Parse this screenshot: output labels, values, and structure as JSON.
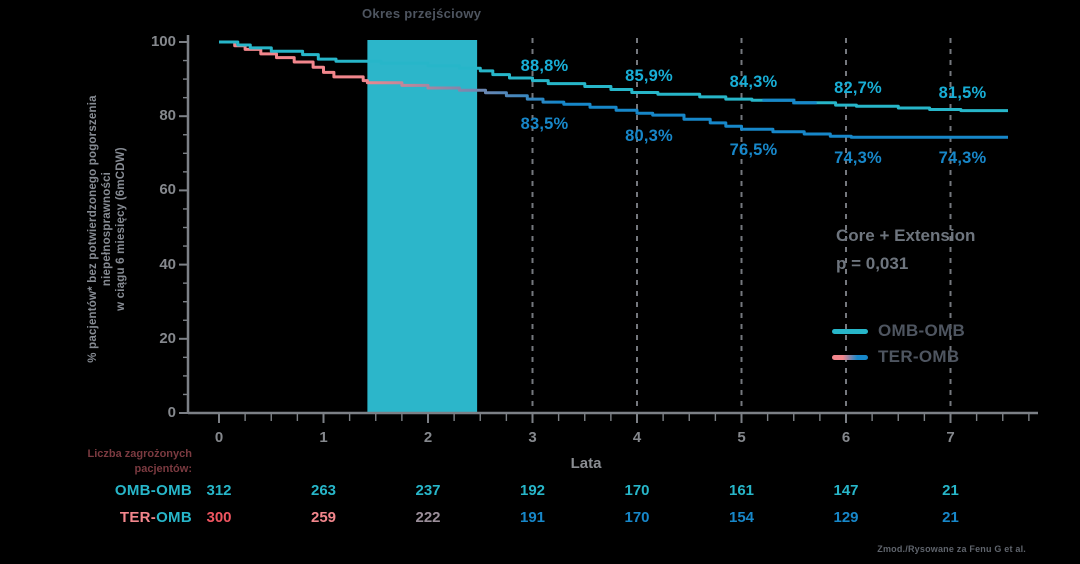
{
  "band": {
    "title": "Okres przejściowy"
  },
  "y_axis": {
    "label_lines": [
      "% pacjentów* bez potwierdzonego pogorszenia",
      "niepełnosprawności",
      "w ciągu 6 miesięcy (6mCDW)"
    ],
    "ticks": [
      0,
      20,
      40,
      60,
      80,
      100
    ]
  },
  "x_axis": {
    "label": "Lata",
    "ticks": [
      0,
      1,
      2,
      3,
      4,
      5,
      6,
      7
    ]
  },
  "annotation": {
    "line1": "Core + Extension",
    "line2": "p = 0,031"
  },
  "legend": {
    "items": [
      {
        "label": "OMB-OMB",
        "swatch": "teal-line"
      },
      {
        "label": "TER-OMB",
        "swatch": "pink-to-blue-gradient-line"
      }
    ]
  },
  "risk_table": {
    "header_lines": [
      "Liczba zagrożonych",
      "pacjentów:"
    ],
    "years": [
      0,
      1,
      2,
      3,
      4,
      5,
      6,
      7
    ],
    "rows": [
      {
        "label": "OMB-OMB",
        "label_parts": [
          {
            "text": "OMB-OMB",
            "color": "#27b6c9"
          }
        ],
        "values": [
          "312",
          "263",
          "237",
          "192",
          "170",
          "161",
          "147",
          "21"
        ],
        "value_colors": [
          "#27b6c9",
          "#27b6c9",
          "#27b6c9",
          "#27b6c9",
          "#27b6c9",
          "#27b6c9",
          "#27b6c9",
          "#27b6c9"
        ]
      },
      {
        "label": "TER-OMB",
        "label_parts": [
          {
            "text": "TER-",
            "color": "#f2868c"
          },
          {
            "text": "OMB",
            "color": "#27b6c9"
          }
        ],
        "values": [
          "300",
          "259",
          "222",
          "191",
          "170",
          "154",
          "129",
          "21"
        ],
        "value_colors": [
          "#ef5560",
          "#f2868c",
          "#9a8e99",
          "#1787c9",
          "#1787c9",
          "#1787c9",
          "#1787c9",
          "#1787c9"
        ]
      }
    ]
  },
  "source": "Zmod./Rysowane za Fenu G et al.",
  "colors": {
    "background": "#000000",
    "teal": "#27b6c9",
    "blue": "#1787c9",
    "pink": "#f2868c",
    "band": "#2cb6ca",
    "axis": "#7c8086",
    "dashed_line": "#75787e",
    "pct_top": "#18aed6",
    "pct_bottom": "#1787c9"
  },
  "chart_data": {
    "type": "line",
    "subtype": "kaplan-meier-step",
    "title": "Okres przejściowy",
    "xlabel": "Lata",
    "ylabel": "% pacjentów* bez potwierdzonego pogorszenia niepełnosprawności w ciągu 6 miesięcy (6mCDW)",
    "xlim": [
      0,
      7.8
    ],
    "ylim": [
      0,
      100
    ],
    "x_ticks": [
      0,
      1,
      2,
      3,
      4,
      5,
      6,
      7
    ],
    "y_ticks": [
      0,
      20,
      40,
      60,
      80,
      100
    ],
    "grid": "dashed-vertical",
    "dashed_gridline_years": [
      3,
      4,
      5,
      6,
      7
    ],
    "transition_band_years": [
      1.42,
      2.47
    ],
    "annotation": "Core + Extension",
    "p_value": "p = 0,031",
    "legend_position": "right-middle",
    "series": [
      {
        "name": "OMB-OMB",
        "color": "#27b6c9",
        "label_color": "#18aed6",
        "year_labels": [
          {
            "year": 3,
            "value": 88.8,
            "text": "88,8%"
          },
          {
            "year": 4,
            "value": 85.9,
            "text": "85,9%"
          },
          {
            "year": 5,
            "value": 84.3,
            "text": "84,3%"
          },
          {
            "year": 6,
            "value": 82.7,
            "text": "82,7%"
          },
          {
            "year": 7,
            "value": 81.5,
            "text": "81,5%"
          }
        ],
        "highlight_segment_years": [
          5.2,
          5.72
        ],
        "highlight_segment_color": "#1787c9",
        "step_points": [
          [
            0,
            100
          ],
          [
            0.18,
            100
          ],
          [
            0.18,
            99.2
          ],
          [
            0.3,
            99.2
          ],
          [
            0.3,
            98.4
          ],
          [
            0.5,
            98.4
          ],
          [
            0.5,
            97.5
          ],
          [
            0.8,
            97.5
          ],
          [
            0.8,
            96.6
          ],
          [
            0.95,
            96.6
          ],
          [
            0.95,
            95.4
          ],
          [
            1.12,
            95.4
          ],
          [
            1.12,
            94.8
          ],
          [
            1.55,
            94.8
          ],
          [
            1.55,
            94.3
          ],
          [
            2.0,
            94.3
          ],
          [
            2.0,
            93.6
          ],
          [
            2.3,
            93.6
          ],
          [
            2.3,
            92.9
          ],
          [
            2.5,
            92.9
          ],
          [
            2.5,
            92.2
          ],
          [
            2.62,
            92.2
          ],
          [
            2.62,
            91.2
          ],
          [
            2.78,
            91.2
          ],
          [
            2.78,
            90.3
          ],
          [
            3.0,
            90.3
          ],
          [
            3.0,
            89.6
          ],
          [
            3.15,
            89.6
          ],
          [
            3.15,
            88.8
          ],
          [
            3.5,
            88.8
          ],
          [
            3.5,
            88
          ],
          [
            3.75,
            88
          ],
          [
            3.75,
            87.2
          ],
          [
            3.95,
            87.2
          ],
          [
            3.95,
            86.4
          ],
          [
            4.2,
            86.4
          ],
          [
            4.2,
            85.9
          ],
          [
            4.6,
            85.9
          ],
          [
            4.6,
            85.2
          ],
          [
            4.85,
            85.2
          ],
          [
            4.85,
            84.6
          ],
          [
            5.1,
            84.6
          ],
          [
            5.1,
            84.3
          ],
          [
            5.5,
            84.3
          ],
          [
            5.5,
            83.6
          ],
          [
            5.9,
            83.6
          ],
          [
            5.9,
            83
          ],
          [
            6.1,
            83
          ],
          [
            6.1,
            82.7
          ],
          [
            6.5,
            82.7
          ],
          [
            6.5,
            82.2
          ],
          [
            6.8,
            82.2
          ],
          [
            6.8,
            81.8
          ],
          [
            7.1,
            81.8
          ],
          [
            7.1,
            81.5
          ],
          [
            7.55,
            81.5
          ]
        ]
      },
      {
        "name": "TER-OMB",
        "color": "gradient-pink-to-blue",
        "gradient_stops": [
          {
            "offset": 0.0,
            "color": "#f2868c"
          },
          {
            "offset": 0.18,
            "color": "#f2868c"
          },
          {
            "offset": 0.43,
            "color": "#1787c9"
          },
          {
            "offset": 1.0,
            "color": "#1787c9"
          }
        ],
        "label_color": "#1787c9",
        "year_labels": [
          {
            "year": 3,
            "value": 83.5,
            "text": "83,5%"
          },
          {
            "year": 4,
            "value": 80.3,
            "text": "80,3%"
          },
          {
            "year": 5,
            "value": 76.5,
            "text": "76,5%"
          },
          {
            "year": 6,
            "value": 74.3,
            "text": "74,3%"
          },
          {
            "year": 7,
            "value": 74.3,
            "text": "74,3%"
          }
        ],
        "step_points": [
          [
            0,
            100
          ],
          [
            0.15,
            100
          ],
          [
            0.15,
            99
          ],
          [
            0.25,
            99
          ],
          [
            0.25,
            98
          ],
          [
            0.4,
            98
          ],
          [
            0.4,
            96.8
          ],
          [
            0.55,
            96.8
          ],
          [
            0.55,
            95.8
          ],
          [
            0.72,
            95.8
          ],
          [
            0.72,
            94.6
          ],
          [
            0.9,
            94.6
          ],
          [
            0.9,
            93.2
          ],
          [
            1.0,
            93.2
          ],
          [
            1.0,
            91.8
          ],
          [
            1.1,
            91.8
          ],
          [
            1.1,
            90.6
          ],
          [
            1.38,
            90.6
          ],
          [
            1.38,
            89.6
          ],
          [
            1.42,
            89.6
          ],
          [
            1.42,
            89
          ],
          [
            1.75,
            89
          ],
          [
            1.75,
            88.3
          ],
          [
            2.0,
            88.3
          ],
          [
            2.0,
            87.6
          ],
          [
            2.3,
            87.6
          ],
          [
            2.3,
            87
          ],
          [
            2.55,
            87
          ],
          [
            2.55,
            86.3
          ],
          [
            2.75,
            86.3
          ],
          [
            2.75,
            85.5
          ],
          [
            2.95,
            85.5
          ],
          [
            2.95,
            84.6
          ],
          [
            3.1,
            84.6
          ],
          [
            3.1,
            83.8
          ],
          [
            3.3,
            83.8
          ],
          [
            3.3,
            83.2
          ],
          [
            3.55,
            83.2
          ],
          [
            3.55,
            82.4
          ],
          [
            3.8,
            82.4
          ],
          [
            3.8,
            81.6
          ],
          [
            4.0,
            81.6
          ],
          [
            4.0,
            80.8
          ],
          [
            4.15,
            80.8
          ],
          [
            4.15,
            80.3
          ],
          [
            4.45,
            80.3
          ],
          [
            4.45,
            79.2
          ],
          [
            4.7,
            79.2
          ],
          [
            4.7,
            78.2
          ],
          [
            4.85,
            78.2
          ],
          [
            4.85,
            77.3
          ],
          [
            5.0,
            77.3
          ],
          [
            5.0,
            76.5
          ],
          [
            5.3,
            76.5
          ],
          [
            5.3,
            75.8
          ],
          [
            5.6,
            75.8
          ],
          [
            5.6,
            75.2
          ],
          [
            5.85,
            75.2
          ],
          [
            5.85,
            74.6
          ],
          [
            6.05,
            74.6
          ],
          [
            6.05,
            74.3
          ],
          [
            7.55,
            74.3
          ]
        ]
      }
    ]
  }
}
